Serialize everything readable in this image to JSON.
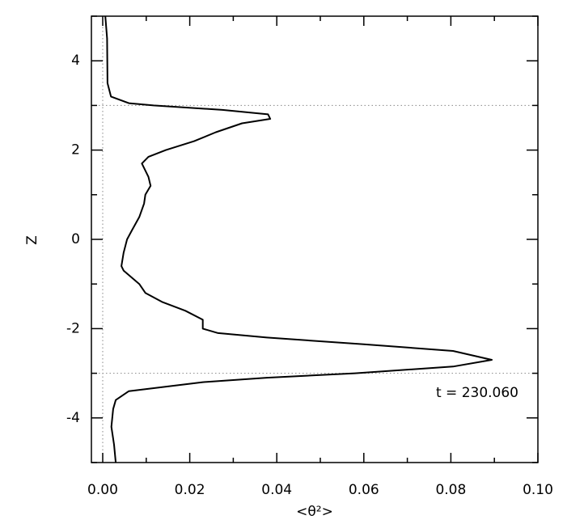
{
  "chart_data": {
    "type": "line",
    "x_label": "<θ²>",
    "y_label": "Z",
    "annotation": "t = 230.060",
    "color": "#000000",
    "x": [
      0.0006,
      0.001,
      0.0011,
      0.0019,
      0.006,
      0.0117,
      0.0275,
      0.038,
      0.0385,
      0.032,
      0.026,
      0.021,
      0.0145,
      0.0105,
      0.009,
      0.0095,
      0.0105,
      0.011,
      0.0098,
      0.0095,
      0.0084,
      0.0067,
      0.0056,
      0.0048,
      0.0043,
      0.0048,
      0.0084,
      0.0098,
      0.0136,
      0.019,
      0.023,
      0.023,
      0.0265,
      0.0377,
      0.06,
      0.0805,
      0.0894,
      0.0805,
      0.058,
      0.0377,
      0.023,
      0.006,
      0.003,
      0.0024,
      0.002,
      0.0026,
      0.003
    ],
    "y": [
      5.0,
      4.5,
      3.5,
      3.2,
      3.05,
      3.0,
      2.9,
      2.8,
      2.7,
      2.6,
      2.4,
      2.2,
      2.0,
      1.85,
      1.7,
      1.6,
      1.4,
      1.2,
      1.0,
      0.8,
      0.5,
      0.2,
      0.0,
      -0.3,
      -0.6,
      -0.7,
      -1.0,
      -1.2,
      -1.4,
      -1.6,
      -1.8,
      -2.0,
      -2.1,
      -2.2,
      -2.35,
      -2.5,
      -2.7,
      -2.85,
      -3.0,
      -3.1,
      -3.2,
      -3.4,
      -3.6,
      -3.8,
      -4.2,
      -4.6,
      -5.0
    ],
    "xlim": [
      -0.0026,
      0.1
    ],
    "ylim": [
      -5,
      5
    ],
    "xticks": [
      {
        "value": 0,
        "label": "0.00"
      },
      {
        "value": 0.02,
        "label": "0.02"
      },
      {
        "value": 0.04,
        "label": "0.04"
      },
      {
        "value": 0.06,
        "label": "0.06"
      },
      {
        "value": 0.08,
        "label": "0.08"
      },
      {
        "value": 0.1,
        "label": "0.10"
      }
    ],
    "yticks": [
      -4,
      -2,
      0,
      2,
      4
    ],
    "x_minor_ticks": [
      0.01,
      0.03,
      0.05,
      0.07,
      0.09
    ],
    "y_minor_ticks": [
      -5,
      -3,
      -1,
      1,
      3,
      5
    ],
    "reference_y": [
      3,
      -3
    ],
    "reference_x": [
      0
    ]
  }
}
